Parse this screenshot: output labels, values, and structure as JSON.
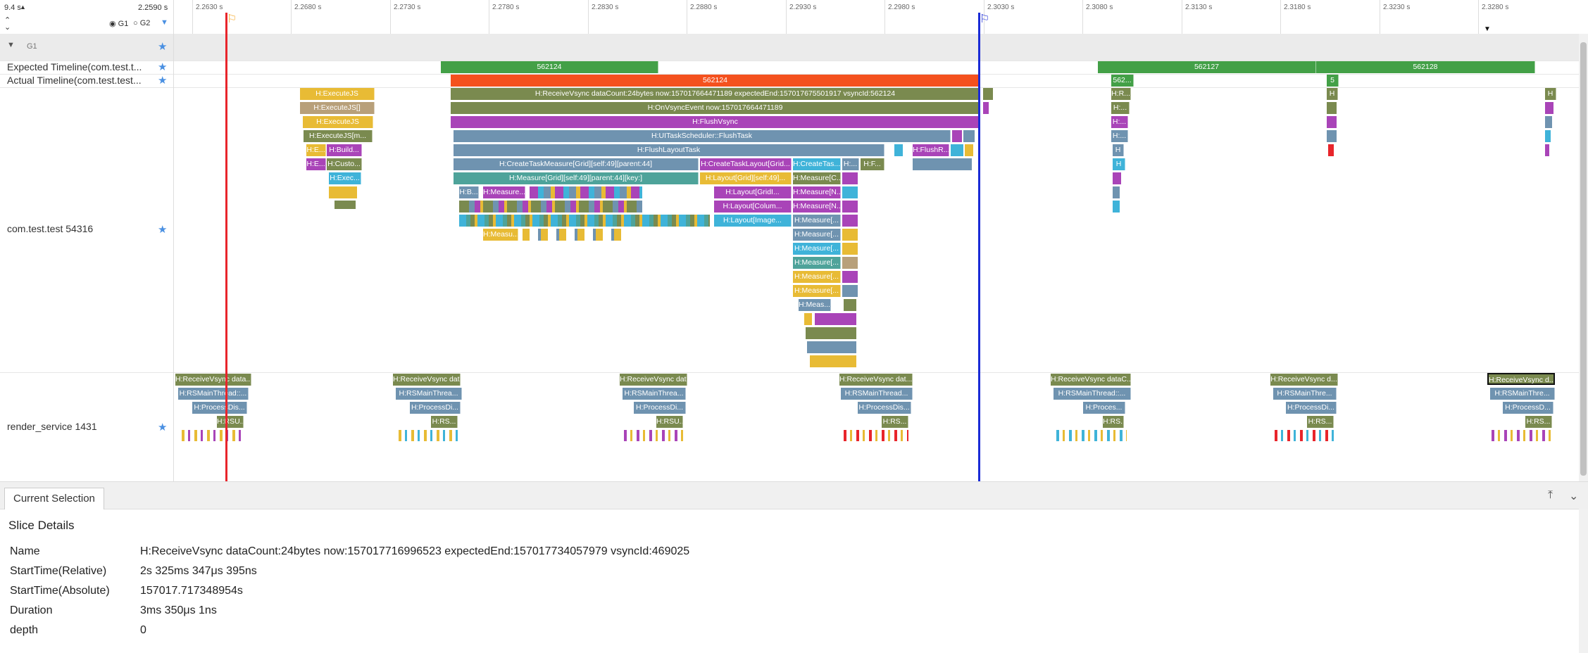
{
  "header": {
    "range_total": "9.4 s",
    "range_current": "2.2590 s",
    "groups": [
      {
        "label": "G1",
        "checked": true
      },
      {
        "label": "G2",
        "checked": false
      }
    ],
    "ticks": [
      "2.2630 s",
      "2.2680 s",
      "2.2730 s",
      "2.2780 s",
      "2.2830 s",
      "2.2880 s",
      "2.2930 s",
      "2.2980 s",
      "2.3030 s",
      "2.3080 s",
      "2.3130 s",
      "2.3180 s",
      "2.3230 s",
      "2.3280 s"
    ]
  },
  "rows": {
    "group": {
      "label": "G1"
    },
    "expected": {
      "label": "Expected Timeline(com.test.t...",
      "slices": [
        "562124",
        "562127",
        "562128"
      ]
    },
    "actual": {
      "label": "Actual Timeline(com.test.test...",
      "slices": [
        "562124",
        "562...",
        "5"
      ]
    },
    "app": {
      "label": "com.test.test 54316"
    },
    "render": {
      "label": "render_service 1431"
    }
  },
  "app_slices": {
    "exec1": "H:ExecuteJS",
    "exec2": "H:ExecuteJS[]",
    "exec3": "H:ExecuteJS",
    "exec4": "H:ExecuteJS[m...",
    "build": "H:Build...",
    "e1": "H:E...",
    "e2": "H:E...",
    "custo": "H:Custo...",
    "execs": "H:Exec...",
    "recv": "H:ReceiveVsync dataCount:24bytes now:157017664471189 expectedEnd:157017675501917 vsyncId:562124",
    "onvsync": "H:OnVsyncEvent now:157017664471189",
    "flush": "H:FlushVsync",
    "uitask": "H:UITaskScheduler::FlushTask",
    "layouttask": "H:FlushLayoutTask",
    "flushr": "H:FlushR...",
    "ctm": "H:CreateTaskMeasure[Grid][self:49][parent:44]",
    "ctl": "H:CreateTaskLayout[Grid...",
    "ctt": "H:CreateTas...",
    "hf": "H:F...",
    "measgrid": "H:Measure[Grid][self:49][parent:44][key:]",
    "laygrid": "H:Layout[Grid][self:49]...",
    "measc": "H:Measure[C...",
    "hb": "H:B...",
    "meas1": "H:Measure...",
    "hdots": "H:...",
    "laygridi": "H:Layout[GridI...",
    "laycol": "H:Layout[Colum...",
    "layimg": "H:Layout[Image...",
    "measn": "H:Measure[N...",
    "measb": "H:Measure[...",
    "measu": "H:Measu...",
    "meas2": "H:Meas...",
    "r1": "H:R...",
    "r2": "H:...",
    "h": "H"
  },
  "render_slices": {
    "recv": [
      "H:ReceiveVsync data...",
      "H:ReceiveVsync dat...",
      "H:ReceiveVsync dat...",
      "H:ReceiveVsync dat...",
      "H:ReceiveVsync dataC...",
      "H:ReceiveVsync d...",
      "H:ReceiveVsync d..."
    ],
    "main": [
      "H:RSMainThread::...",
      "H:RSMainThrea...",
      "H:RSMainThrea...",
      "H:RSMainThread...",
      "H:RSMainThread::...",
      "H:RSMainThre...",
      "H:RSMainThre..."
    ],
    "proc": [
      "H:ProcessDis...",
      "H:ProcessDi...",
      "H:ProcessDi...",
      "H:ProcessDis...",
      "H:Proces...",
      "H:ProcessDi...",
      "H:ProcessD..."
    ],
    "rs": [
      "H:RSU...",
      "H:RS...",
      "H:RSU...",
      "H:RS...",
      "H:RS...",
      "H:RS...",
      "H:RS..."
    ]
  },
  "colors": {
    "green": "#43a047",
    "orange": "#f4511e",
    "olive": "#7a8a4f",
    "purple": "#a944b8",
    "teal": "#4ea39a",
    "blue": "#3fb3d9",
    "gold": "#e8bb35",
    "pink": "#c85cb0",
    "slate": "#6f93b0",
    "red": "#e8252b",
    "navy": "#1a2bd6"
  },
  "bottom": {
    "tab": "Current Selection",
    "title": "Slice Details",
    "details": [
      {
        "key": "Name",
        "value": "H:ReceiveVsync dataCount:24bytes now:157017716996523 expectedEnd:157017734057979 vsyncId:469025"
      },
      {
        "key": "StartTime(Relative)",
        "value": "2s 325ms 347μs 395ns"
      },
      {
        "key": "StartTime(Absolute)",
        "value": "157017.717348954s"
      },
      {
        "key": "Duration",
        "value": "3ms 350μs 1ns"
      },
      {
        "key": "depth",
        "value": "0"
      }
    ]
  }
}
